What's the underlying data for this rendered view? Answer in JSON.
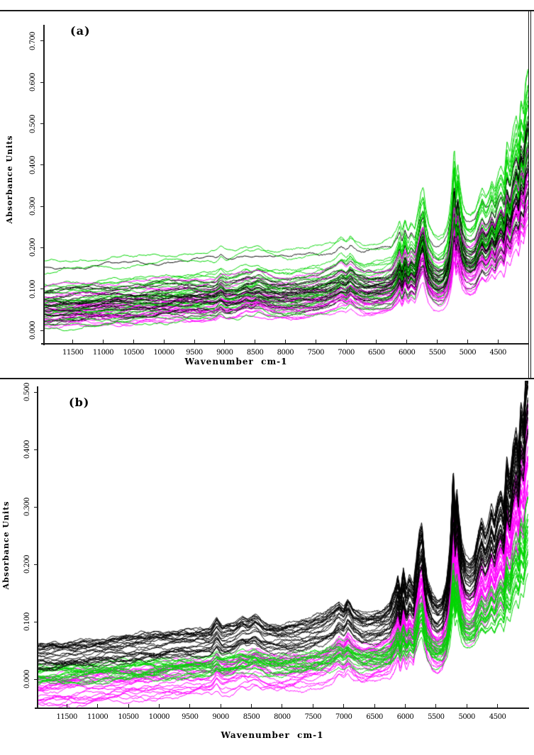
{
  "figure": {
    "background_color": "#ffffff",
    "border_color": "#1a1a1a",
    "borders": [
      "top-rule",
      "right-rule-outer",
      "right-rule-inner",
      "panel-separator-rule"
    ]
  },
  "chart_data": [
    {
      "type": "line",
      "panel_label": "(a)",
      "xlabel": "Wavenumber  cm-1",
      "ylabel": "Absorbance Units",
      "x_axis": {
        "ticks": [
          11500,
          11000,
          10500,
          10000,
          9500,
          9000,
          8500,
          8000,
          7500,
          7000,
          6500,
          6000,
          5500,
          5000,
          4500
        ],
        "range": [
          11975,
          4005
        ],
        "direction": "decreasing"
      },
      "y_axis": {
        "tick_labels": [
          "0.000",
          "0.100",
          "0.200",
          "0.300",
          "0.400",
          "0.500",
          "0.600",
          "0.700"
        ],
        "range": [
          -0.025,
          0.73
        ]
      },
      "legend": "none",
      "grid": false,
      "draw_order": "interleaved",
      "series_groups": [
        {
          "name": "green-spectra",
          "color": "#00d500",
          "count": 22,
          "offset_range": [
            0.0,
            0.112
          ],
          "amp_range": [
            0.78,
            1.2
          ],
          "outlier_offsets": [
            0.165,
            0.142
          ]
        },
        {
          "name": "black-spectra",
          "color": "#000000",
          "count": 24,
          "offset_range": [
            0.0,
            0.112
          ],
          "amp_range": [
            0.55,
            0.98
          ],
          "outlier_offsets": [
            0.15
          ]
        },
        {
          "name": "magenta-spectra",
          "color": "#ff00ff",
          "count": 20,
          "offset_range": [
            0.0,
            0.108
          ],
          "amp_range": [
            0.5,
            0.85
          ],
          "outlier_offsets": []
        }
      ]
    },
    {
      "type": "line",
      "panel_label": "(b)",
      "xlabel": "Wavenumber  cm-1",
      "ylabel": "Absorbance Units",
      "x_axis": {
        "ticks": [
          11500,
          11000,
          10500,
          10000,
          9500,
          9000,
          8500,
          8000,
          7500,
          7000,
          6500,
          6000,
          5500,
          5000,
          4500
        ],
        "range": [
          11975,
          4005
        ],
        "direction": "decreasing"
      },
      "y_axis": {
        "tick_labels": [
          "0.000",
          "0.100",
          "0.200",
          "0.300",
          "0.400",
          "0.500"
        ],
        "range": [
          -0.052,
          0.52
        ]
      },
      "legend": "none",
      "grid": false,
      "draw_order": "grouped",
      "series_groups": [
        {
          "name": "magenta-spectra",
          "color": "#ff00ff",
          "count": 24,
          "offset_range": [
            -0.05,
            0.008
          ],
          "amp_range": [
            0.72,
            1.05
          ],
          "outlier_offsets": []
        },
        {
          "name": "green-spectra",
          "color": "#00d500",
          "count": 20,
          "offset_range": [
            -0.012,
            0.022
          ],
          "amp_range": [
            0.38,
            0.65
          ],
          "outlier_offsets": []
        },
        {
          "name": "black-spectra",
          "color": "#000000",
          "count": 26,
          "offset_range": [
            0.018,
            0.058
          ],
          "amp_range": [
            0.85,
            1.1
          ],
          "outlier_offsets": []
        }
      ]
    }
  ],
  "base_profile": [
    [
      12000,
      0.0
    ],
    [
      11600,
      0.004
    ],
    [
      11200,
      0.008
    ],
    [
      10800,
      0.013
    ],
    [
      10400,
      0.017
    ],
    [
      10000,
      0.022
    ],
    [
      9600,
      0.026
    ],
    [
      9300,
      0.028
    ],
    [
      9150,
      0.03
    ],
    [
      9060,
      0.044
    ],
    [
      8980,
      0.032
    ],
    [
      8800,
      0.036
    ],
    [
      8650,
      0.048
    ],
    [
      8560,
      0.044
    ],
    [
      8450,
      0.052
    ],
    [
      8300,
      0.04
    ],
    [
      8100,
      0.035
    ],
    [
      7900,
      0.036
    ],
    [
      7600,
      0.042
    ],
    [
      7350,
      0.05
    ],
    [
      7180,
      0.062
    ],
    [
      7080,
      0.075
    ],
    [
      7000,
      0.066
    ],
    [
      6930,
      0.08
    ],
    [
      6840,
      0.064
    ],
    [
      6700,
      0.053
    ],
    [
      6550,
      0.055
    ],
    [
      6400,
      0.058
    ],
    [
      6250,
      0.068
    ],
    [
      6160,
      0.095
    ],
    [
      6120,
      0.115
    ],
    [
      6080,
      0.09
    ],
    [
      6030,
      0.125
    ],
    [
      5980,
      0.095
    ],
    [
      5930,
      0.115
    ],
    [
      5870,
      0.1
    ],
    [
      5810,
      0.15
    ],
    [
      5770,
      0.185
    ],
    [
      5730,
      0.2
    ],
    [
      5690,
      0.15
    ],
    [
      5640,
      0.11
    ],
    [
      5560,
      0.085
    ],
    [
      5480,
      0.075
    ],
    [
      5400,
      0.082
    ],
    [
      5330,
      0.11
    ],
    [
      5280,
      0.16
    ],
    [
      5245,
      0.23
    ],
    [
      5220,
      0.3
    ],
    [
      5190,
      0.23
    ],
    [
      5160,
      0.26
    ],
    [
      5130,
      0.22
    ],
    [
      5080,
      0.17
    ],
    [
      5020,
      0.145
    ],
    [
      4950,
      0.14
    ],
    [
      4880,
      0.15
    ],
    [
      4810,
      0.185
    ],
    [
      4760,
      0.205
    ],
    [
      4700,
      0.185
    ],
    [
      4650,
      0.2
    ],
    [
      4600,
      0.225
    ],
    [
      4550,
      0.205
    ],
    [
      4500,
      0.235
    ],
    [
      4450,
      0.255
    ],
    [
      4400,
      0.23
    ],
    [
      4350,
      0.305
    ],
    [
      4300,
      0.275
    ],
    [
      4250,
      0.33
    ],
    [
      4200,
      0.36
    ],
    [
      4160,
      0.33
    ],
    [
      4120,
      0.4
    ],
    [
      4080,
      0.38
    ],
    [
      4040,
      0.45
    ],
    [
      4000,
      0.48
    ]
  ]
}
